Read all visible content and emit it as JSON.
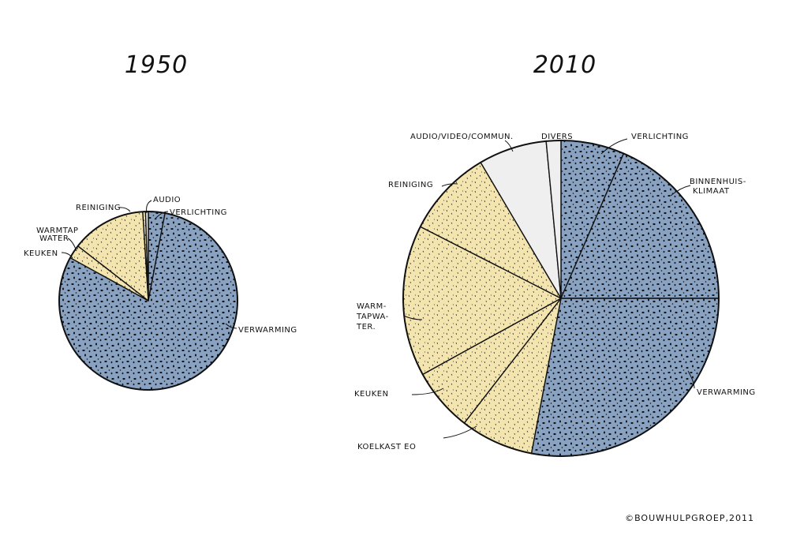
{
  "chart_data": [
    {
      "type": "pie",
      "title": "1950",
      "slices": [
        {
          "label": "VERLICHTING",
          "value": 3,
          "color": "#89a2c2"
        },
        {
          "label": "VERWARMING",
          "value": 80,
          "color": "#89a2c2"
        },
        {
          "label": "KEUKEN",
          "value": 2.5,
          "color": "#f3e5ad"
        },
        {
          "label": "WARMTAPWATER",
          "value": 13.5,
          "color": "#f3e5ad"
        },
        {
          "label": "REINIGING",
          "value": 0.5,
          "color": "#f3e5ad"
        },
        {
          "label": "AUDIO",
          "value": 0.5,
          "color": "#efefef"
        }
      ]
    },
    {
      "type": "pie",
      "title": "2010",
      "slices": [
        {
          "label": "VERLICHTING",
          "value": 6.5,
          "color": "#89a2c2"
        },
        {
          "label": "BINNENHUIS-KLIMAAT",
          "value": 18.5,
          "color": "#89a2c2"
        },
        {
          "label": "VERWARMING",
          "value": 28,
          "color": "#89a2c2"
        },
        {
          "label": "KOELKAST EO",
          "value": 7.5,
          "color": "#f3e5ad"
        },
        {
          "label": "KEUKEN",
          "value": 6.5,
          "color": "#f3e5ad"
        },
        {
          "label": "WARMTAPWATER",
          "value": 15.5,
          "color": "#f3e5ad"
        },
        {
          "label": "REINIGING",
          "value": 9,
          "color": "#f3e5ad"
        },
        {
          "label": "AUDIO/VIDEO/COMMUN.",
          "value": 7,
          "color": "#efefef"
        },
        {
          "label": "DIVERS",
          "value": 1.5,
          "color": "#efefef"
        }
      ]
    }
  ],
  "labels_1950": {
    "audio": "AUDIO",
    "verlichting": "VERLICHTING",
    "reiniging": "REINIGING",
    "warmtap_l1": "WARMTAP",
    "warmtap_l2": "WATER",
    "keuken": "KEUKEN",
    "verwarming": "VERWARMING"
  },
  "labels_2010": {
    "audio": "AUDIO/VIDEO/COMMUN.",
    "divers": "DIVERS",
    "verlichting": "VERLICHTING",
    "klimaat_l1": "BINNENHUIS-",
    "klimaat_l2": "KLIMAAT",
    "reiniging": "REINIGING",
    "warm_l1": "WARM-",
    "warm_l2": "TAPWA-",
    "warm_l3": "TER.",
    "keuken": "KEUKEN",
    "koelkast": "KOELKAST EO",
    "verwarming": "VERWARMING"
  },
  "credit": "©BOUWHULPGROEP,2011"
}
